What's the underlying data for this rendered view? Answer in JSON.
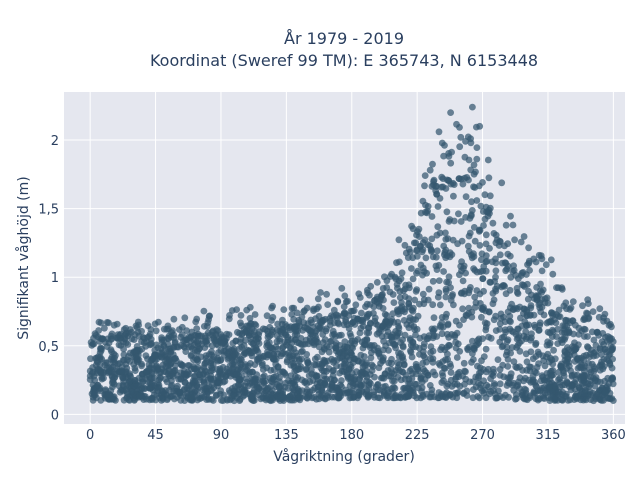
{
  "chart_data": {
    "type": "scatter",
    "title": [
      "År 1979 - 2019",
      "Koordinat (Sweref 99 TM): E 365743, N 6153448"
    ],
    "xlabel": "Vågriktning (grader)",
    "ylabel": "Signifikant våghöjd (m)",
    "xlim": [
      -18,
      368
    ],
    "ylim": [
      -0.07,
      2.35
    ],
    "xticks": [
      0,
      45,
      90,
      135,
      180,
      225,
      270,
      315,
      360
    ],
    "xtick_labels": [
      "0",
      "45",
      "90",
      "135",
      "180",
      "225",
      "270",
      "315",
      "360"
    ],
    "yticks": [
      0,
      0.5,
      1,
      1.5,
      2
    ],
    "ytick_labels": [
      "0",
      "0,5",
      "1",
      "1,5",
      "2"
    ],
    "grid": true,
    "marker_color": "#34586f",
    "plot_background": "#e5e7ef",
    "series": [
      {
        "lower_envelope": {
          "x": [
            0,
            45,
            90,
            135,
            180,
            225,
            270,
            315,
            360
          ],
          "y": [
            0.1,
            0.1,
            0.1,
            0.1,
            0.12,
            0.12,
            0.12,
            0.1,
            0.1
          ]
        },
        "dense_upper_envelope": {
          "x": [
            0,
            45,
            90,
            135,
            160,
            180,
            200,
            215,
            225,
            235,
            245,
            255,
            265,
            275,
            290,
            305,
            320,
            340,
            360
          ],
          "y": [
            0.55,
            0.55,
            0.58,
            0.62,
            0.68,
            0.75,
            0.85,
            1.05,
            1.3,
            1.55,
            1.7,
            1.72,
            1.65,
            1.45,
            1.05,
            0.85,
            0.72,
            0.62,
            0.55
          ]
        },
        "max_envelope": {
          "x": [
            0,
            45,
            90,
            135,
            160,
            180,
            200,
            215,
            225,
            235,
            245,
            255,
            265,
            275,
            290,
            305,
            320,
            340,
            360
          ],
          "y": [
            0.7,
            0.68,
            0.8,
            0.8,
            0.9,
            0.95,
            1.05,
            1.35,
            1.6,
            1.9,
            2.05,
            2.15,
            2.2,
            2.0,
            1.5,
            1.3,
            1.1,
            0.85,
            0.75
          ]
        },
        "peak_points": [
          {
            "x": 248,
            "y": 2.2
          },
          {
            "x": 263,
            "y": 2.24
          },
          {
            "x": 268,
            "y": 2.1
          },
          {
            "x": 240,
            "y": 2.06
          },
          {
            "x": 255,
            "y": 2.02
          },
          {
            "x": 262,
            "y": 1.98
          }
        ]
      }
    ]
  }
}
